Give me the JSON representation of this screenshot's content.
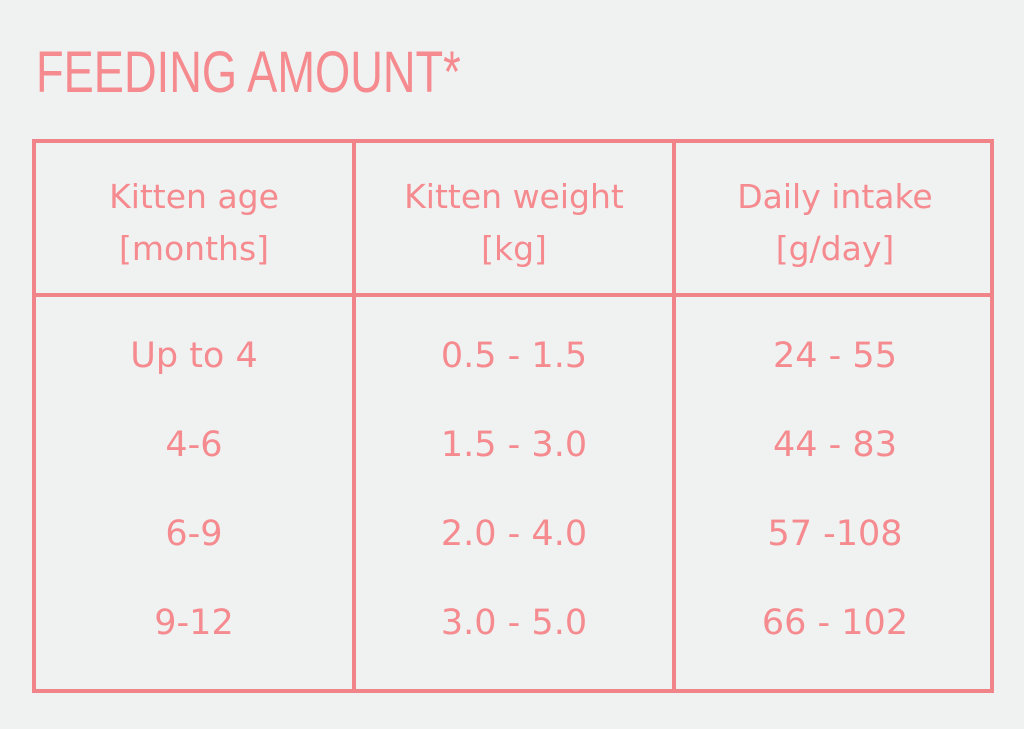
{
  "title": "FEEDING AMOUNT*",
  "colors": {
    "accent": "#f58a8f",
    "border": "#f08489",
    "background": "#f0f1f1"
  },
  "table": {
    "headers": [
      {
        "line1": "Kitten age",
        "line2": "[months]"
      },
      {
        "line1": "Kitten weight",
        "line2": "[kg]"
      },
      {
        "line1": "Daily intake",
        "line2": "[g/day]"
      }
    ],
    "rows": [
      {
        "age": "Up to 4",
        "weight": "0.5 - 1.5",
        "intake": "24 - 55"
      },
      {
        "age": "4-6",
        "weight": "1.5 - 3.0",
        "intake": "44 - 83"
      },
      {
        "age": "6-9",
        "weight": "2.0 - 4.0",
        "intake": "57 -108"
      },
      {
        "age": "9-12",
        "weight": "3.0 - 5.0",
        "intake": "66 - 102"
      }
    ]
  }
}
